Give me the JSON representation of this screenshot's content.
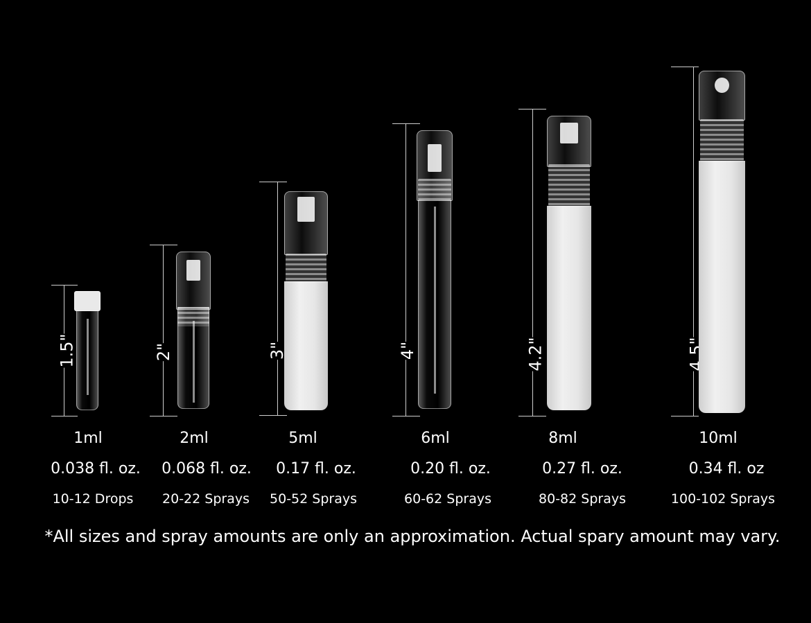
{
  "products": [
    {
      "height": "1.5\"",
      "volume": "1ml",
      "fl_oz": "0.038 fl. oz.",
      "count": "10-12 Drops",
      "finish": "clear"
    },
    {
      "height": "2\"",
      "volume": "2ml",
      "fl_oz": "0.068 fl. oz.",
      "count": "20-22 Sprays",
      "finish": "clear"
    },
    {
      "height": "3\"",
      "volume": "5ml",
      "fl_oz": "0.17 fl. oz.",
      "count": "50-52 Sprays",
      "finish": "frosted"
    },
    {
      "height": "4\"",
      "volume": "6ml",
      "fl_oz": "0.20 fl. oz.",
      "count": "60-62 Sprays",
      "finish": "clear"
    },
    {
      "height": "4.2\"",
      "volume": "8ml",
      "fl_oz": "0.27 fl. oz.",
      "count": "80-82 Sprays",
      "finish": "frosted"
    },
    {
      "height": "4.5\"",
      "volume": "10ml",
      "fl_oz": "0.34 fl. oz",
      "count": "100-102 Sprays",
      "finish": "frosted"
    }
  ],
  "footnote": "*All sizes and spray amounts are only an approximation. Actual spary amount may vary.",
  "colors": {
    "background": "#000000",
    "text": "#ffffff"
  }
}
